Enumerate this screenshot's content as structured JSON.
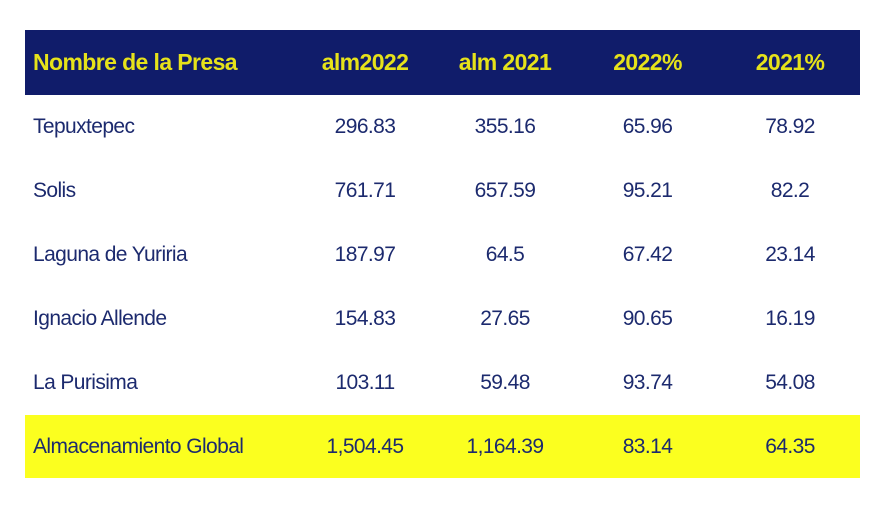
{
  "table": {
    "header": [
      "Nombre de la Presa",
      "alm2022",
      "alm 2021",
      "2022%",
      "2021%"
    ],
    "rows": [
      [
        "Tepuxtepec",
        "296.83",
        "355.16",
        "65.96",
        "78.92"
      ],
      [
        "Solis",
        "761.71",
        "657.59",
        "95.21",
        "82.2"
      ],
      [
        "Laguna de Yuriria",
        "187.97",
        "64.5",
        "67.42",
        "23.14"
      ],
      [
        "Ignacio Allende",
        "154.83",
        "27.65",
        "90.65",
        "16.19"
      ],
      [
        "La Purisima",
        "103.11",
        "59.48",
        "93.74",
        "54.08"
      ]
    ],
    "total": [
      "Almacenamiento Global",
      "1,504.45",
      "1,164.39",
      "83.14",
      "64.35"
    ]
  }
}
